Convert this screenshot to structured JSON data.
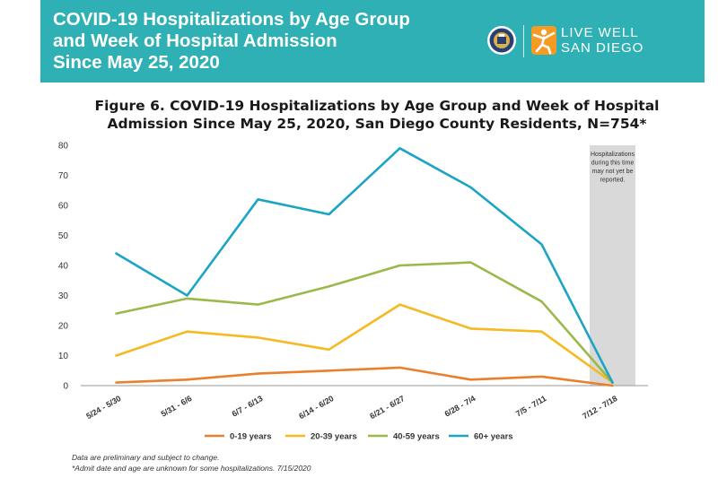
{
  "header": {
    "title_lines": [
      "COVID-19 Hospitalizations by Age Group",
      "and Week of Hospital Admission",
      "Since May 25, 2020"
    ],
    "logo_line1": "LIVE WELL",
    "logo_line2": "SAN DIEGO"
  },
  "colors": {
    "banner": "#2fb0b4",
    "series_0_19": "#e8802e",
    "series_20_39": "#f5b921",
    "series_40_59": "#9bb84a",
    "series_60_plus": "#1ca4c4",
    "shade": "#d9d9d9"
  },
  "chart_data": {
    "type": "line",
    "title": "Figure 6. COVID-19 Hospitalizations by Age Group and Week of Hospital Admission Since May 25, 2020, San Diego County Residents, N=754*",
    "title_lines": [
      "Figure 6. COVID-19 Hospitalizations by Age Group and Week of Hospital",
      "Admission Since May 25, 2020, San Diego County Residents, N=754*"
    ],
    "categories": [
      "5/24 - 5/30",
      "5/31 - 6/6",
      "6/7 - 6/13",
      "6/14 - 6/20",
      "6/21 - 6/27",
      "6/28 - 7/4",
      "7/5 - 7/11",
      "7/12 - 7/18"
    ],
    "series": [
      {
        "name": "0-19 years",
        "color": "#e8802e",
        "values": [
          1,
          2,
          4,
          5,
          6,
          2,
          3,
          0
        ]
      },
      {
        "name": "20-39 years",
        "color": "#f5b921",
        "values": [
          10,
          18,
          16,
          12,
          27,
          19,
          18,
          1
        ]
      },
      {
        "name": "40-59 years",
        "color": "#9bb84a",
        "values": [
          24,
          29,
          27,
          33,
          40,
          41,
          28,
          1
        ]
      },
      {
        "name": "60+ years",
        "color": "#1ca4c4",
        "values": [
          44,
          30,
          62,
          57,
          79,
          66,
          47,
          1
        ]
      }
    ],
    "ylim": [
      0,
      80
    ],
    "yticks": [
      0,
      10,
      20,
      30,
      40,
      50,
      60,
      70,
      80
    ],
    "grid": false,
    "legend": "bottom",
    "shaded_category": "7/12 - 7/18",
    "shade_note": [
      "Hospitalizations",
      "during this time",
      "may not yet be",
      "reported."
    ]
  },
  "footnotes": [
    "Data are preliminary and subject to change.",
    "*Admit date and age are unknown for some hospitalizations. 7/15/2020"
  ]
}
